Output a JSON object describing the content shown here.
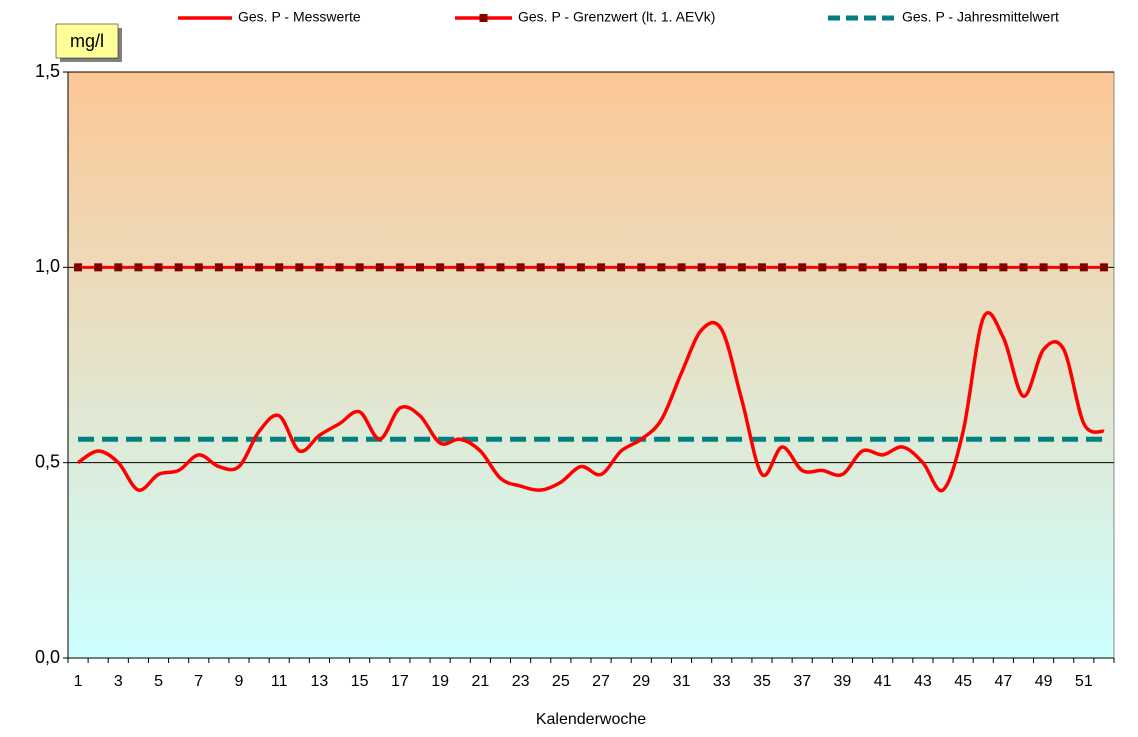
{
  "chart_data": {
    "type": "line",
    "y_unit_label": "mg/l",
    "x_label": "Kalenderwoche",
    "categories": [
      1,
      null,
      3,
      null,
      5,
      null,
      7,
      null,
      9,
      null,
      11,
      null,
      13,
      null,
      15,
      null,
      17,
      null,
      19,
      null,
      21,
      null,
      23,
      null,
      25,
      null,
      27,
      null,
      29,
      null,
      31,
      null,
      33,
      null,
      35,
      null,
      37,
      null,
      39,
      null,
      41,
      null,
      43,
      null,
      45,
      null,
      47,
      null,
      49,
      null,
      51,
      null
    ],
    "series": [
      {
        "name": "Ges. P - Messwerte",
        "color": "#ff0000",
        "style": "smooth",
        "values": [
          0.5,
          0.53,
          0.5,
          0.43,
          0.47,
          0.48,
          0.52,
          0.49,
          0.49,
          0.58,
          0.62,
          0.53,
          0.57,
          0.6,
          0.63,
          0.56,
          0.64,
          0.62,
          0.55,
          0.56,
          0.53,
          0.46,
          0.44,
          0.43,
          0.45,
          0.49,
          0.47,
          0.53,
          0.56,
          0.61,
          0.73,
          0.84,
          0.84,
          0.66,
          0.47,
          0.54,
          0.48,
          0.48,
          0.47,
          0.53,
          0.52,
          0.54,
          0.5,
          0.43,
          0.58,
          0.87,
          0.82,
          0.67,
          0.79,
          0.79,
          0.6,
          0.58
        ]
      },
      {
        "name": "Ges. P - Grenzwert (lt. 1. AEVk)",
        "color": "#ff0000",
        "marker_color": "#800000",
        "style": "markers",
        "values": [
          1.0,
          1.0,
          1.0,
          1.0,
          1.0,
          1.0,
          1.0,
          1.0,
          1.0,
          1.0,
          1.0,
          1.0,
          1.0,
          1.0,
          1.0,
          1.0,
          1.0,
          1.0,
          1.0,
          1.0,
          1.0,
          1.0,
          1.0,
          1.0,
          1.0,
          1.0,
          1.0,
          1.0,
          1.0,
          1.0,
          1.0,
          1.0,
          1.0,
          1.0,
          1.0,
          1.0,
          1.0,
          1.0,
          1.0,
          1.0,
          1.0,
          1.0,
          1.0,
          1.0,
          1.0,
          1.0,
          1.0,
          1.0,
          1.0,
          1.0,
          1.0,
          1.0
        ]
      },
      {
        "name": "Ges. P - Jahresmittelwert",
        "color": "#008080",
        "style": "dashed",
        "values": [
          0.56,
          0.56,
          0.56,
          0.56,
          0.56,
          0.56,
          0.56,
          0.56,
          0.56,
          0.56,
          0.56,
          0.56,
          0.56,
          0.56,
          0.56,
          0.56,
          0.56,
          0.56,
          0.56,
          0.56,
          0.56,
          0.56,
          0.56,
          0.56,
          0.56,
          0.56,
          0.56,
          0.56,
          0.56,
          0.56,
          0.56,
          0.56,
          0.56,
          0.56,
          0.56,
          0.56,
          0.56,
          0.56,
          0.56,
          0.56,
          0.56,
          0.56,
          0.56,
          0.56,
          0.56,
          0.56,
          0.56,
          0.56,
          0.56,
          0.56,
          0.56,
          0.56
        ]
      }
    ],
    "ylim": [
      0,
      1.5
    ],
    "yticks": [
      {
        "value": 0,
        "label": "0,0"
      },
      {
        "value": 0.5,
        "label": "0,5"
      },
      {
        "value": 1.0,
        "label": "1,0"
      },
      {
        "value": 1.5,
        "label": "1,5"
      }
    ],
    "grid": true,
    "legend": "top"
  }
}
